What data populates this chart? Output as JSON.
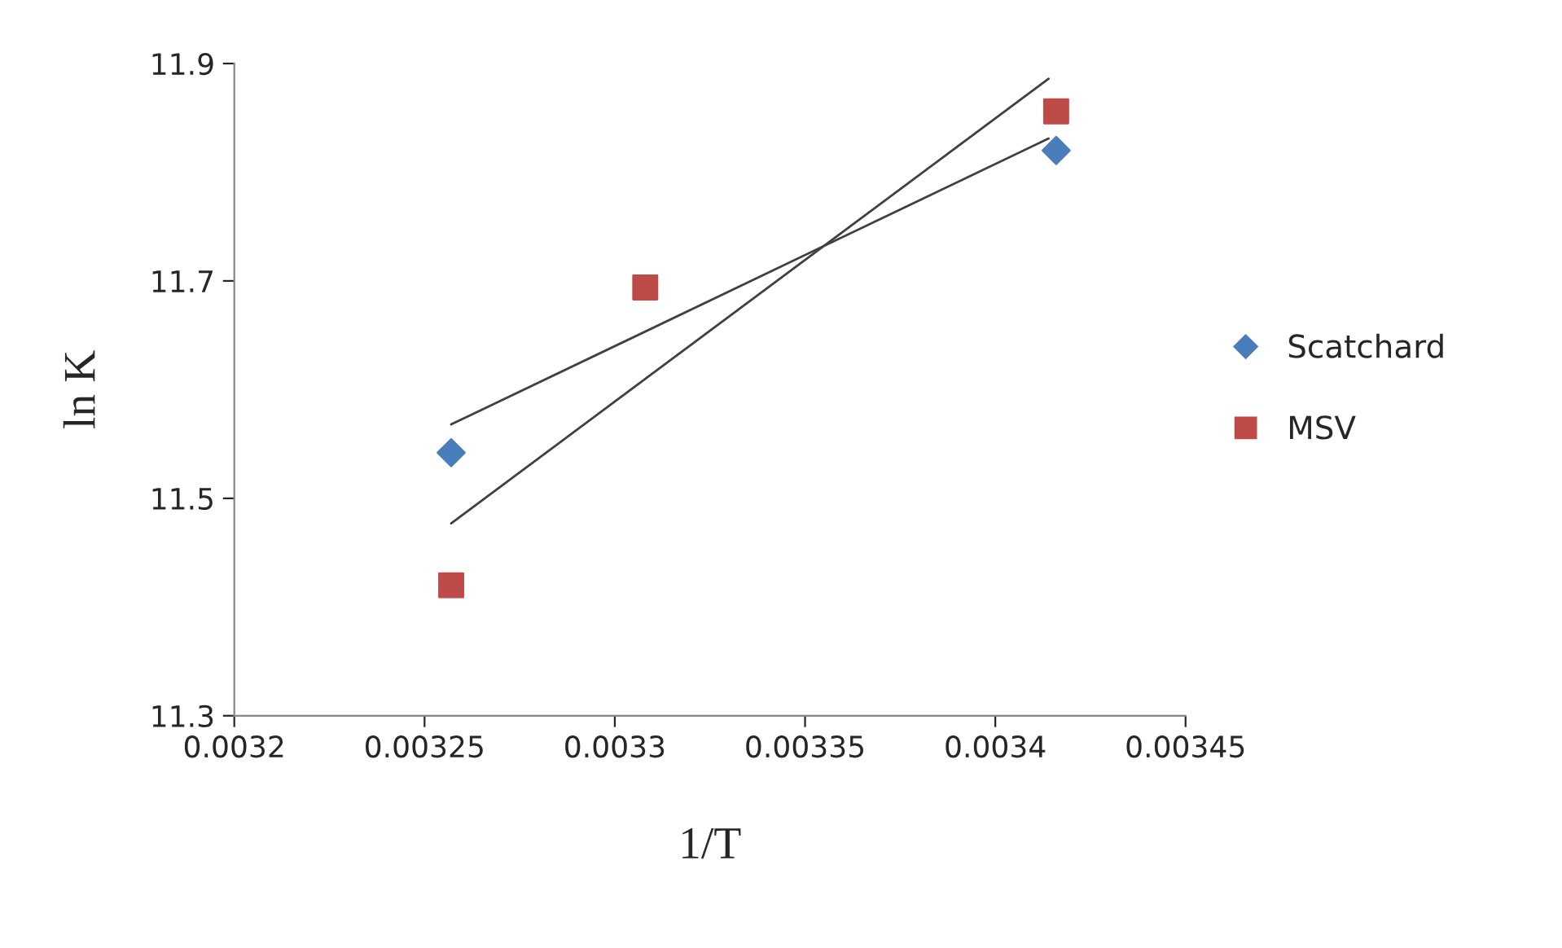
{
  "chart_data": {
    "type": "scatter",
    "xlabel": "1/T",
    "ylabel": "ln K",
    "xlim": [
      0.0032,
      0.00345
    ],
    "xticks": [
      0.0032,
      0.00325,
      0.0033,
      0.00335,
      0.0034,
      0.00345
    ],
    "ylim": [
      11.3,
      11.9
    ],
    "yticks": [
      {
        "value": 11.3,
        "label": "11.3"
      },
      {
        "value": 11.5,
        "label": "11.5"
      },
      {
        "value": 11.7,
        "label": "11.7"
      },
      {
        "value": 11.9,
        "label": "11.9"
      }
    ],
    "grid": false,
    "legend": "right",
    "series": [
      {
        "name": "Scatchard",
        "marker": "diamond",
        "color": "#4a7ebb",
        "x": [
          0.003257,
          0.003416
        ],
        "values": [
          11.542,
          11.82
        ]
      },
      {
        "name": "MSV",
        "marker": "square",
        "color": "#be4b48",
        "x": [
          0.003257,
          0.003308,
          0.003416
        ],
        "values": [
          11.42,
          11.694,
          11.856
        ]
      },
      {
        "type": "line",
        "marker": "none",
        "color": "#404040",
        "x": [
          0.003257,
          0.003414
        ],
        "values": [
          11.568,
          11.831
        ]
      },
      {
        "type": "line",
        "marker": "none",
        "color": "#404040",
        "x": [
          0.003257,
          0.003414
        ],
        "values": [
          11.477,
          11.886
        ]
      }
    ]
  }
}
